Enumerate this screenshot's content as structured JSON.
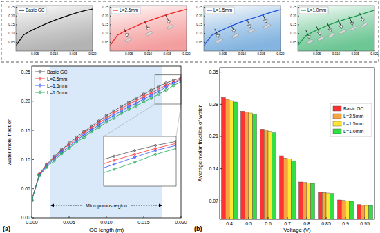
{
  "chart_data": [
    {
      "type": "line",
      "x": [
        0,
        0.002,
        0.004,
        0.006,
        0.008,
        0.01,
        0.012,
        0.014,
        0.016,
        0.018,
        0.02
      ],
      "series": [
        {
          "name": "Basic GC",
          "color": "#000000",
          "values": [
            0.03,
            0.092,
            0.117,
            0.138,
            0.157,
            0.175,
            0.191,
            0.205,
            0.219,
            0.231,
            0.24
          ]
        }
      ],
      "xlim": [
        0,
        0.02
      ],
      "ylim": [
        0,
        0.26
      ],
      "xticks": [
        {
          "value": 0.005,
          "label": "0.005"
        },
        {
          "value": 0.01,
          "label": "0.010"
        },
        {
          "value": 0.015,
          "label": "0.015"
        },
        {
          "value": 0.02,
          "label": "0.020"
        }
      ],
      "yticks": [
        0.05,
        {
          "value": 0.1,
          "label": "0.10"
        },
        0.15,
        {
          "value": 0.2,
          "label": "0.20"
        },
        0.25
      ],
      "legend": "upper left"
    },
    {
      "type": "line",
      "x": [
        0,
        0.002,
        0.004,
        0.006,
        0.008,
        0.01,
        0.012,
        0.014,
        0.016,
        0.018,
        0.02
      ],
      "series": [
        {
          "name": "L=2.5mm",
          "color": "#ee2222",
          "values": [
            0.03,
            0.091,
            0.115,
            0.135,
            0.154,
            0.171,
            0.187,
            0.201,
            0.214,
            0.227,
            0.238
          ]
        }
      ],
      "xlim": [
        0,
        0.02
      ],
      "ylim": [
        0,
        0.26
      ],
      "xticks": [
        {
          "value": 0.005,
          "label": "0.005"
        },
        {
          "value": 0.01,
          "label": "0.010"
        },
        {
          "value": 0.015,
          "label": "0.015"
        },
        {
          "value": 0.02,
          "label": "0.020"
        }
      ],
      "yticks": [
        0.05,
        {
          "value": 0.1,
          "label": "0.10"
        },
        0.15,
        {
          "value": 0.2,
          "label": "0.20"
        },
        0.25
      ],
      "legend": "upper left"
    },
    {
      "type": "line",
      "x": [
        0,
        0.002,
        0.004,
        0.006,
        0.008,
        0.01,
        0.012,
        0.014,
        0.016,
        0.018,
        0.02
      ],
      "series": [
        {
          "name": "L=1.5mm",
          "color": "#1f4fe0",
          "values": [
            0.03,
            0.089,
            0.113,
            0.133,
            0.151,
            0.168,
            0.183,
            0.196,
            0.21,
            0.224,
            0.236
          ]
        }
      ],
      "xlim": [
        0,
        0.02
      ],
      "ylim": [
        0,
        0.26
      ],
      "xticks": [
        {
          "value": 0.005,
          "label": "0.005"
        },
        {
          "value": 0.01,
          "label": "0.010"
        },
        {
          "value": 0.015,
          "label": "0.015"
        },
        {
          "value": 0.02,
          "label": "0.020"
        }
      ],
      "yticks": [
        0.05,
        {
          "value": 0.1,
          "label": "0.10"
        },
        0.15,
        {
          "value": 0.2,
          "label": "0.20"
        },
        0.25
      ],
      "legend": "upper left"
    },
    {
      "type": "line",
      "x": [
        0,
        0.002,
        0.004,
        0.006,
        0.008,
        0.01,
        0.012,
        0.014,
        0.016,
        0.018,
        0.02
      ],
      "series": [
        {
          "name": "L=1.0mm",
          "color": "#1a9a4a",
          "values": [
            0.03,
            0.087,
            0.11,
            0.13,
            0.148,
            0.164,
            0.179,
            0.192,
            0.205,
            0.219,
            0.233
          ]
        }
      ],
      "xlim": [
        0,
        0.02
      ],
      "ylim": [
        0,
        0.26
      ],
      "xticks": [
        {
          "value": 0.005,
          "label": "0.005"
        },
        {
          "value": 0.01,
          "label": "0.010"
        },
        {
          "value": 0.015,
          "label": "0.015"
        },
        {
          "value": 0.02,
          "label": "0.020"
        }
      ],
      "yticks": [
        0.05,
        {
          "value": 0.1,
          "label": "0.10"
        },
        0.15,
        {
          "value": 0.2,
          "label": "0.20"
        },
        0.25
      ],
      "legend": "upper left"
    },
    {
      "type": "line",
      "title": "(a)",
      "xlabel": "GC length (m)",
      "ylabel": "Water mole fraction",
      "x": [
        0,
        0.001,
        0.002,
        0.003,
        0.004,
        0.005,
        0.006,
        0.007,
        0.008,
        0.009,
        0.01,
        0.011,
        0.012,
        0.013,
        0.014,
        0.015,
        0.016,
        0.017,
        0.018,
        0.019,
        0.02
      ],
      "series": [
        {
          "name": "Basic GC",
          "color": "#555555",
          "marker": "circle",
          "values": [
            0.03,
            0.075,
            0.092,
            0.105,
            0.117,
            0.128,
            0.138,
            0.148,
            0.157,
            0.166,
            0.175,
            0.183,
            0.191,
            0.198,
            0.205,
            0.212,
            0.219,
            0.225,
            0.231,
            0.236,
            0.24
          ]
        },
        {
          "name": "L=2.5mm",
          "color": "#ff3333",
          "marker": "circle",
          "values": [
            0.03,
            0.074,
            0.091,
            0.103,
            0.115,
            0.126,
            0.135,
            0.146,
            0.154,
            0.163,
            0.171,
            0.18,
            0.187,
            0.195,
            0.201,
            0.208,
            0.214,
            0.221,
            0.227,
            0.233,
            0.238
          ]
        },
        {
          "name": "L=1.5mm",
          "color": "#3355ff",
          "marker": "circle",
          "values": [
            0.03,
            0.073,
            0.089,
            0.101,
            0.113,
            0.122,
            0.133,
            0.142,
            0.151,
            0.159,
            0.168,
            0.176,
            0.183,
            0.191,
            0.196,
            0.204,
            0.21,
            0.217,
            0.224,
            0.231,
            0.236
          ]
        },
        {
          "name": "L=1.0mm",
          "color": "#22aa55",
          "marker": "circle",
          "values": [
            0.03,
            0.072,
            0.087,
            0.098,
            0.11,
            0.119,
            0.13,
            0.138,
            0.148,
            0.155,
            0.164,
            0.171,
            0.179,
            0.186,
            0.192,
            0.199,
            0.205,
            0.212,
            0.219,
            0.227,
            0.233
          ]
        }
      ],
      "xlim": [
        0,
        0.02
      ],
      "ylim": [
        0,
        0.26
      ],
      "xticks": [
        {
          "value": 0,
          "label": "0.000"
        },
        {
          "value": 0.005,
          "label": "0.005"
        },
        {
          "value": 0.01,
          "label": "0.010"
        },
        {
          "value": 0.015,
          "label": "0.015"
        },
        {
          "value": 0.02,
          "label": "0.020"
        }
      ],
      "yticks": [
        {
          "value": 0,
          "label": "0.00"
        },
        0.05,
        {
          "value": 0.1,
          "label": "0.10"
        },
        0.15,
        {
          "value": 0.2,
          "label": "0.20"
        },
        0.25
      ],
      "regions": [
        {
          "x": [
            0.0025,
            0.0175
          ],
          "label": "Microporous region",
          "color": "#cfe3f8"
        }
      ],
      "inset": {
        "xlim": [
          0.0165,
          0.02
        ],
        "ylim": [
          0.195,
          0.245
        ]
      },
      "legend": "upper left"
    },
    {
      "type": "bar",
      "title": "(b)",
      "xlabel": "Voltage (V)",
      "ylabel": "Average molar fraction of water",
      "categories": [
        "0.4",
        "0.5",
        "0.6",
        "0.7",
        "0.8",
        "0.85",
        "0.9",
        "0.95"
      ],
      "series": [
        {
          "name": "Basic GC",
          "color": "#ff3333",
          "values": [
            0.295,
            0.265,
            0.226,
            0.168,
            0.111,
            0.089,
            0.072,
            0.062
          ]
        },
        {
          "name": "L=2.5mm",
          "color": "#f7a541",
          "values": [
            0.291,
            0.263,
            0.224,
            0.163,
            0.11,
            0.088,
            0.071,
            0.061
          ]
        },
        {
          "name": "L=1.5mm",
          "color": "#ffe633",
          "values": [
            0.288,
            0.261,
            0.221,
            0.161,
            0.109,
            0.087,
            0.07,
            0.06
          ]
        },
        {
          "name": "L=1.0mm",
          "color": "#33dd44",
          "values": [
            0.285,
            0.259,
            0.218,
            0.157,
            0.108,
            0.086,
            0.069,
            0.06
          ]
        }
      ],
      "ylim": [
        0.03,
        0.36
      ],
      "yticks": [
        0.07,
        0.14,
        0.21,
        0.28,
        0.35
      ],
      "legend": "upper right"
    }
  ]
}
